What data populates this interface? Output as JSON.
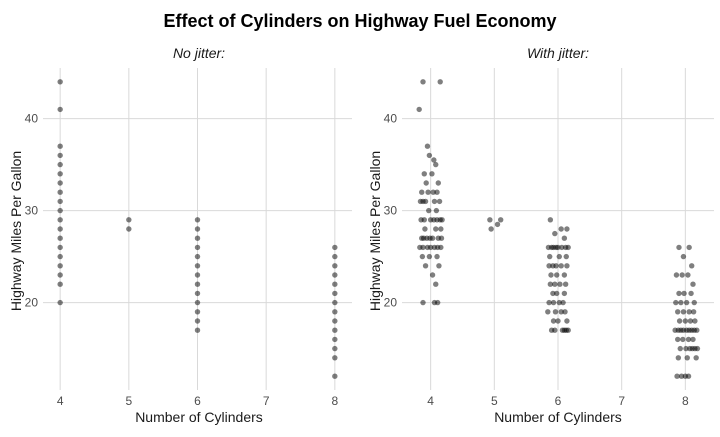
{
  "chart_data": {
    "title": "Effect of Cylinders on Highway Fuel Economy",
    "type": "scatter",
    "colors": {
      "point": "#000000",
      "grid": "#d9d9d9",
      "tick_text": "#4d4d4d"
    },
    "panels": [
      {
        "type": "scatter",
        "subtitle": "No jitter:",
        "xlabel": "Number of Cylinders",
        "ylabel": "Highway Miles Per Gallon",
        "xlim": [
          3.75,
          8.25
        ],
        "ylim": [
          10.5,
          45.5
        ],
        "x_ticks": [
          4,
          5,
          6,
          7,
          8
        ],
        "y_ticks": [
          20,
          30,
          40
        ],
        "grid": true,
        "point_alpha": 0.5,
        "points": [
          [
            4,
            20
          ],
          [
            4,
            22
          ],
          [
            4,
            23
          ],
          [
            4,
            24
          ],
          [
            4,
            25
          ],
          [
            4,
            26
          ],
          [
            4,
            27
          ],
          [
            4,
            28
          ],
          [
            4,
            29
          ],
          [
            4,
            30
          ],
          [
            4,
            31
          ],
          [
            4,
            32
          ],
          [
            4,
            33
          ],
          [
            4,
            34
          ],
          [
            4,
            35
          ],
          [
            4,
            36
          ],
          [
            4,
            37
          ],
          [
            4,
            41
          ],
          [
            4,
            44
          ],
          [
            5,
            28
          ],
          [
            5,
            29
          ],
          [
            6,
            17
          ],
          [
            6,
            18
          ],
          [
            6,
            19
          ],
          [
            6,
            20
          ],
          [
            6,
            21
          ],
          [
            6,
            22
          ],
          [
            6,
            23
          ],
          [
            6,
            24
          ],
          [
            6,
            25
          ],
          [
            6,
            26
          ],
          [
            6,
            27
          ],
          [
            6,
            28
          ],
          [
            6,
            29
          ],
          [
            8,
            12
          ],
          [
            8,
            14
          ],
          [
            8,
            15
          ],
          [
            8,
            16
          ],
          [
            8,
            17
          ],
          [
            8,
            18
          ],
          [
            8,
            19
          ],
          [
            8,
            20
          ],
          [
            8,
            21
          ],
          [
            8,
            22
          ],
          [
            8,
            23
          ],
          [
            8,
            24
          ],
          [
            8,
            25
          ],
          [
            8,
            26
          ]
        ]
      },
      {
        "type": "scatter",
        "subtitle": "With jitter:",
        "xlabel": "Number of Cylinders",
        "ylabel": "Highway Miles Per Gallon",
        "xlim": [
          3.55,
          8.45
        ],
        "ylim": [
          10.5,
          45.5
        ],
        "x_ticks": [
          4,
          5,
          6,
          7,
          8
        ],
        "y_ticks": [
          20,
          30,
          40
        ],
        "grid": true,
        "point_alpha": 0.5,
        "points": [
          [
            3.88,
            44
          ],
          [
            4.15,
            44
          ],
          [
            3.82,
            41
          ],
          [
            3.95,
            37
          ],
          [
            3.98,
            36
          ],
          [
            4.05,
            35.5
          ],
          [
            4.08,
            35
          ],
          [
            3.9,
            34
          ],
          [
            4.02,
            34
          ],
          [
            3.93,
            33
          ],
          [
            4.12,
            33
          ],
          [
            3.86,
            32
          ],
          [
            3.96,
            32
          ],
          [
            4.04,
            32
          ],
          [
            4.1,
            32
          ],
          [
            3.84,
            31
          ],
          [
            3.88,
            31
          ],
          [
            3.92,
            31
          ],
          [
            4.06,
            31
          ],
          [
            4.14,
            31
          ],
          [
            3.97,
            30
          ],
          [
            4.09,
            30
          ],
          [
            3.85,
            29
          ],
          [
            3.9,
            29
          ],
          [
            4.0,
            29
          ],
          [
            4.05,
            29
          ],
          [
            4.1,
            29
          ],
          [
            4.15,
            29
          ],
          [
            4.18,
            29
          ],
          [
            3.91,
            28
          ],
          [
            4.08,
            28
          ],
          [
            4.16,
            28
          ],
          [
            3.86,
            27
          ],
          [
            3.89,
            27
          ],
          [
            3.94,
            27
          ],
          [
            3.99,
            27
          ],
          [
            4.03,
            27
          ],
          [
            4.12,
            27
          ],
          [
            4.17,
            27
          ],
          [
            3.83,
            26
          ],
          [
            3.88,
            26
          ],
          [
            3.95,
            26
          ],
          [
            4.0,
            26
          ],
          [
            4.06,
            26
          ],
          [
            4.11,
            26
          ],
          [
            4.16,
            26
          ],
          [
            3.87,
            25
          ],
          [
            3.98,
            25
          ],
          [
            4.1,
            25
          ],
          [
            3.92,
            24
          ],
          [
            4.13,
            24
          ],
          [
            4.03,
            23
          ],
          [
            4.08,
            22
          ],
          [
            3.88,
            20
          ],
          [
            4.06,
            20
          ],
          [
            4.11,
            20
          ],
          [
            4.93,
            29
          ],
          [
            5.1,
            29
          ],
          [
            4.95,
            28
          ],
          [
            5.05,
            28.5
          ],
          [
            5.88,
            29
          ],
          [
            6.05,
            28
          ],
          [
            6.14,
            28
          ],
          [
            5.95,
            27.5
          ],
          [
            6.1,
            27
          ],
          [
            5.85,
            26
          ],
          [
            5.9,
            26
          ],
          [
            5.93,
            26
          ],
          [
            5.97,
            26
          ],
          [
            6.0,
            26
          ],
          [
            6.06,
            26
          ],
          [
            6.12,
            26
          ],
          [
            6.16,
            26
          ],
          [
            5.87,
            25
          ],
          [
            6.02,
            25
          ],
          [
            6.13,
            25
          ],
          [
            5.86,
            24
          ],
          [
            5.92,
            24
          ],
          [
            5.97,
            24
          ],
          [
            6.05,
            24
          ],
          [
            6.14,
            24
          ],
          [
            5.89,
            23
          ],
          [
            5.98,
            23
          ],
          [
            6.1,
            23
          ],
          [
            5.88,
            22
          ],
          [
            5.95,
            22
          ],
          [
            6.03,
            22
          ],
          [
            6.12,
            22
          ],
          [
            5.92,
            21
          ],
          [
            5.98,
            21
          ],
          [
            6.1,
            21
          ],
          [
            5.86,
            20
          ],
          [
            5.93,
            20
          ],
          [
            6.02,
            20
          ],
          [
            6.08,
            20
          ],
          [
            5.84,
            19
          ],
          [
            5.96,
            19
          ],
          [
            6.05,
            19
          ],
          [
            6.11,
            19
          ],
          [
            5.93,
            18
          ],
          [
            6.0,
            18
          ],
          [
            6.14,
            18
          ],
          [
            5.9,
            17
          ],
          [
            5.95,
            17
          ],
          [
            6.07,
            17
          ],
          [
            6.1,
            17
          ],
          [
            6.13,
            17
          ],
          [
            6.16,
            17
          ],
          [
            7.9,
            26
          ],
          [
            8.06,
            26
          ],
          [
            7.97,
            25
          ],
          [
            8.1,
            24
          ],
          [
            7.86,
            23
          ],
          [
            7.95,
            23
          ],
          [
            8.04,
            23
          ],
          [
            8.12,
            22
          ],
          [
            7.9,
            21
          ],
          [
            7.98,
            21
          ],
          [
            8.09,
            21
          ],
          [
            7.85,
            20
          ],
          [
            7.93,
            20
          ],
          [
            8.02,
            20
          ],
          [
            8.14,
            20
          ],
          [
            7.88,
            19
          ],
          [
            7.97,
            19
          ],
          [
            8.06,
            19
          ],
          [
            8.13,
            19
          ],
          [
            7.91,
            18
          ],
          [
            8.0,
            18
          ],
          [
            8.08,
            18
          ],
          [
            8.15,
            18
          ],
          [
            7.84,
            17
          ],
          [
            7.89,
            17
          ],
          [
            7.93,
            17
          ],
          [
            7.97,
            17
          ],
          [
            8.02,
            17
          ],
          [
            8.06,
            17
          ],
          [
            8.1,
            17
          ],
          [
            8.14,
            17
          ],
          [
            8.18,
            17
          ],
          [
            7.88,
            16
          ],
          [
            7.96,
            16
          ],
          [
            8.05,
            16
          ],
          [
            8.12,
            16
          ],
          [
            7.92,
            15
          ],
          [
            8.01,
            15
          ],
          [
            8.07,
            15
          ],
          [
            8.11,
            15
          ],
          [
            8.15,
            15
          ],
          [
            8.19,
            15
          ],
          [
            7.89,
            14
          ],
          [
            8.03,
            14
          ],
          [
            8.17,
            14
          ],
          [
            7.87,
            12
          ],
          [
            7.94,
            12
          ],
          [
            8.0,
            12
          ],
          [
            8.05,
            12
          ]
        ]
      }
    ]
  }
}
